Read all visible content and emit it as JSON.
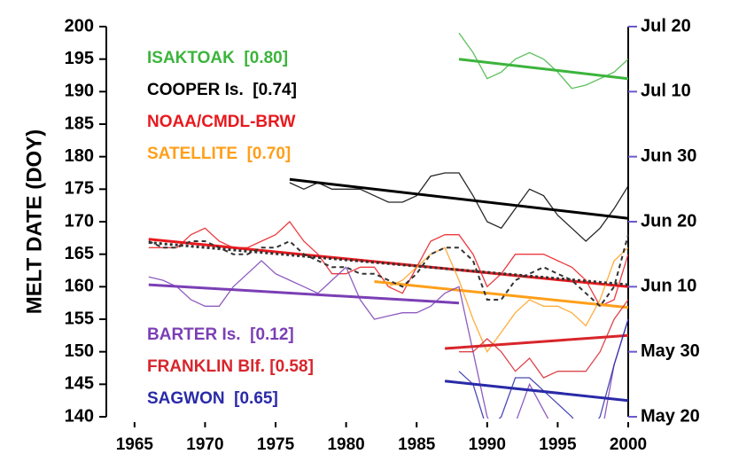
{
  "chart_data": {
    "type": "line",
    "y_label": "MELT DATE  (DOY)",
    "xlim": [
      1963,
      2000
    ],
    "xticks": [
      1965,
      1970,
      1975,
      1980,
      1985,
      1990,
      1995,
      2000
    ],
    "ylim": [
      140,
      200
    ],
    "yticks": [
      140,
      145,
      150,
      155,
      160,
      165,
      170,
      175,
      180,
      185,
      190,
      195,
      200
    ],
    "y2lim": [
      140,
      200
    ],
    "y2ticks": [
      {
        "value": 140,
        "label": "May 20"
      },
      {
        "value": 150,
        "label": "May 30"
      },
      {
        "value": 160,
        "label": "Jun 10"
      },
      {
        "value": 170,
        "label": "Jun 20"
      },
      {
        "value": 180,
        "label": "Jun 30"
      },
      {
        "value": 190,
        "label": "Jul 10"
      },
      {
        "value": 200,
        "label": "Jul 20"
      }
    ],
    "series": [
      {
        "name": "ISAKTOAK  [0.80]",
        "color": "#3cb43c",
        "x": [
          1988,
          1989,
          1990,
          1991,
          1992,
          1993,
          1994,
          1995,
          1996,
          1997,
          1998,
          1999,
          2000
        ],
        "values": [
          199,
          196,
          192,
          193,
          195,
          196,
          195,
          193,
          190.5,
          191,
          192,
          193,
          195
        ],
        "trend": {
          "x": [
            1988,
            2000
          ],
          "values": [
            195,
            192
          ]
        }
      },
      {
        "name": "COOPER Is.  [0.74]",
        "color": "#000000",
        "x": [
          1976,
          1977,
          1978,
          1979,
          1980,
          1981,
          1982,
          1983,
          1984,
          1985,
          1986,
          1987,
          1988,
          1989,
          1990,
          1991,
          1992,
          1993,
          1994,
          1995,
          1996,
          1997,
          1998,
          1999,
          2000
        ],
        "values": [
          176,
          175,
          176,
          175,
          175,
          175,
          174,
          173,
          173,
          174,
          177,
          177.5,
          177.5,
          174,
          170,
          169,
          172,
          175,
          174,
          171,
          169,
          167,
          169,
          172,
          175.5
        ],
        "trend": {
          "x": [
            1976,
            2000
          ],
          "values": [
            176.5,
            170.5
          ]
        }
      },
      {
        "name": "NOAA/CMDL-BRW",
        "color": "#e8191e",
        "x": [
          1966,
          1967,
          1968,
          1969,
          1970,
          1971,
          1972,
          1973,
          1974,
          1975,
          1976,
          1977,
          1978,
          1979,
          1980,
          1981,
          1982,
          1983,
          1984,
          1985,
          1986,
          1987,
          1988,
          1989,
          1990,
          1991,
          1992,
          1993,
          1994,
          1995,
          1996,
          1997,
          1998,
          1999,
          2000
        ],
        "values": [
          166,
          166,
          166,
          168,
          169,
          167,
          166,
          166,
          167,
          168,
          170,
          167,
          165,
          162,
          162,
          163,
          163,
          160,
          159,
          163,
          167,
          168,
          168,
          165,
          160,
          162,
          165,
          165,
          165,
          164,
          163,
          161,
          157,
          158,
          165
        ],
        "trend": {
          "x": [
            1966,
            2000
          ],
          "values": [
            167.3,
            160
          ]
        }
      },
      {
        "name": "SATELLITE  [0.70]",
        "color": "#ff9f1a",
        "x": [
          1983,
          1984,
          1985,
          1986,
          1987,
          1988,
          1989,
          1990,
          1991,
          1992,
          1993,
          1994,
          1995,
          1996,
          1997,
          1998,
          1999,
          2000
        ],
        "values": [
          160,
          161,
          163,
          165,
          166,
          161,
          155,
          150,
          153,
          156,
          158,
          157,
          157,
          156,
          154,
          158,
          164,
          166
        ],
        "trend": {
          "x": [
            1982,
            2000
          ],
          "values": [
            160.8,
            156.8
          ]
        }
      },
      {
        "color": "#333333",
        "line_style": "dashed",
        "x": [
          1966,
          1967,
          1968,
          1969,
          1970,
          1971,
          1972,
          1973,
          1974,
          1975,
          1976,
          1977,
          1978,
          1979,
          1980,
          1981,
          1982,
          1983,
          1984,
          1985,
          1986,
          1987,
          1988,
          1989,
          1990,
          1991,
          1992,
          1993,
          1994,
          1995,
          1996,
          1997,
          1998,
          1999,
          2000
        ],
        "values": [
          167,
          166,
          166,
          167,
          167,
          166,
          165,
          165,
          166,
          166,
          167,
          165,
          164,
          163,
          163,
          162,
          162,
          161,
          160,
          162,
          165,
          166,
          166,
          164,
          158,
          158,
          161,
          162,
          163,
          162,
          161,
          159,
          157,
          160,
          168
        ],
        "trend": {
          "x": [
            1966,
            2000
          ],
          "values": [
            166.8,
            160.3
          ]
        }
      },
      {
        "name": "BARTER Is.  [0.12]",
        "color": "#7b3fb5",
        "x": [
          1966,
          1967,
          1968,
          1969,
          1970,
          1971,
          1972,
          1973,
          1974,
          1975,
          1976,
          1977,
          1978,
          1979,
          1980,
          1981,
          1982,
          1983,
          1984,
          1985,
          1986,
          1987,
          1988,
          1989,
          1990,
          1991,
          1992,
          1993,
          1994,
          1995,
          1996,
          1997,
          1998,
          1999,
          2000
        ],
        "values": [
          161.5,
          161,
          160,
          158,
          157,
          157,
          160,
          162,
          164,
          162,
          161,
          160,
          159,
          161,
          163,
          158,
          155,
          155.5,
          156,
          156,
          157,
          159,
          160,
          150,
          140,
          136,
          139,
          145,
          141,
          137,
          130,
          130,
          136,
          148,
          155
        ],
        "trend": {
          "x": [
            1966,
            1988
          ],
          "values": [
            160.3,
            157.5
          ]
        }
      },
      {
        "name": "FRANKLIN Blf. [0.58]",
        "color": "#d8252b",
        "x": [
          1988,
          1989,
          1990,
          1991,
          1992,
          1993,
          1994,
          1995,
          1996,
          1997,
          1998,
          1999,
          2000
        ],
        "values": [
          150,
          150,
          152,
          150,
          147,
          149,
          146,
          147,
          147,
          147,
          150,
          155,
          158
        ],
        "trend": {
          "x": [
            1987,
            2000
          ],
          "values": [
            150.5,
            152.5
          ]
        }
      },
      {
        "name": "SAGWON  [0.65]",
        "color": "#2a2aa8",
        "x": [
          1988,
          1989,
          1990,
          1991,
          1992,
          1993,
          1994,
          1995,
          1996,
          1997,
          1998,
          1999,
          2000
        ],
        "values": [
          147,
          145,
          138,
          140,
          146,
          146,
          144,
          142,
          140,
          137,
          140,
          148,
          155
        ],
        "trend": {
          "x": [
            1987,
            2000
          ],
          "values": [
            145.5,
            142.5
          ]
        }
      }
    ]
  }
}
